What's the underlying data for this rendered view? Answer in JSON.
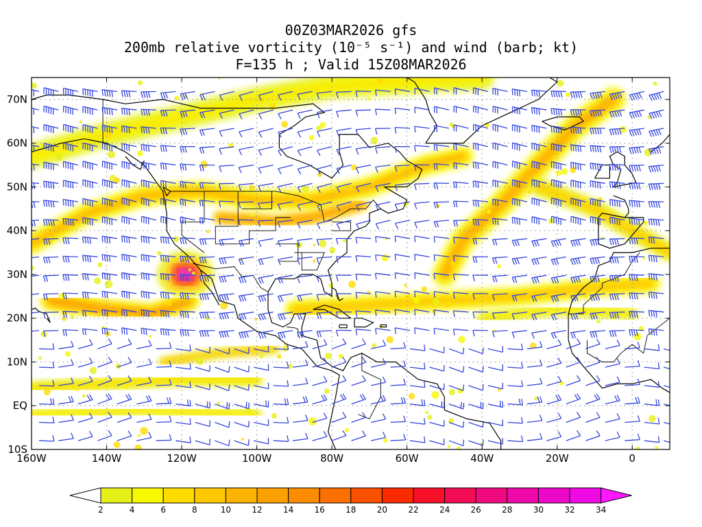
{
  "header": {
    "line1": "00Z03MAR2026 gfs",
    "line2": "200mb relative vorticity (10⁻⁵ s⁻¹) and wind (barb; kt)",
    "line3": "F=135 h ; Valid 15Z08MAR2026"
  },
  "map": {
    "lat_labels": [
      "70N",
      "60N",
      "50N",
      "40N",
      "30N",
      "20N",
      "10N",
      "EQ",
      "10S"
    ],
    "lon_labels": [
      "160W",
      "140W",
      "120W",
      "100W",
      "80W",
      "60W",
      "40W",
      "20W",
      "0"
    ],
    "barb_color": "#3344dd",
    "outline_color": "#000000"
  },
  "colorbar": {
    "labels": [
      "2",
      "4",
      "6",
      "8",
      "10",
      "12",
      "14",
      "16",
      "18",
      "20",
      "22",
      "24",
      "26",
      "28",
      "30",
      "32",
      "34"
    ],
    "colors": [
      "#e6f018",
      "#f8f800",
      "#fedc00",
      "#fec800",
      "#fdb400",
      "#fca000",
      "#fb8c00",
      "#fb7000",
      "#fb5000",
      "#fa2a00",
      "#f8102a",
      "#f20c55",
      "#f00a80",
      "#ee0aa8",
      "#ec08c8",
      "#f00ae6"
    ],
    "low_color": "#ffffff",
    "high_color": "#ff18ff"
  }
}
